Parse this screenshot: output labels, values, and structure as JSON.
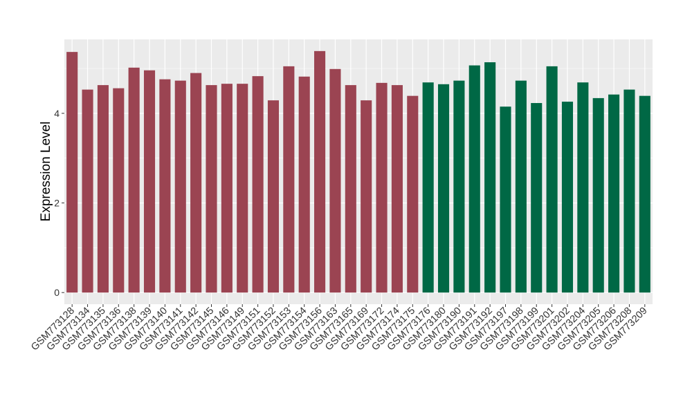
{
  "chart_data": {
    "type": "bar",
    "y_label": "Expression Level",
    "categories": [
      "GSM773128",
      "GSM773134",
      "GSM773135",
      "GSM773136",
      "GSM773138",
      "GSM773139",
      "GSM773140",
      "GSM773141",
      "GSM773142",
      "GSM773145",
      "GSM773146",
      "GSM773149",
      "GSM773151",
      "GSM773152",
      "GSM773153",
      "GSM773154",
      "GSM773156",
      "GSM773163",
      "GSM773165",
      "GSM773169",
      "GSM773172",
      "GSM773174",
      "GSM773175",
      "GSM773176",
      "GSM773180",
      "GSM773190",
      "GSM773191",
      "GSM773192",
      "GSM773197",
      "GSM773198",
      "GSM773199",
      "GSM773201",
      "GSM773202",
      "GSM773204",
      "GSM773205",
      "GSM773206",
      "GSM773208",
      "GSM773209"
    ],
    "values": [
      5.37,
      4.53,
      4.63,
      4.56,
      5.02,
      4.96,
      4.76,
      4.73,
      4.9,
      4.63,
      4.66,
      4.66,
      4.83,
      4.29,
      5.05,
      4.82,
      5.39,
      4.99,
      4.63,
      4.29,
      4.68,
      4.63,
      4.39,
      4.69,
      4.65,
      4.73,
      5.07,
      5.14,
      4.15,
      4.73,
      4.23,
      5.05,
      4.26,
      4.69,
      4.34,
      4.42,
      4.53,
      4.39
    ],
    "colors": [
      "#9b4452",
      "#9b4452",
      "#9b4452",
      "#9b4452",
      "#9b4452",
      "#9b4452",
      "#9b4452",
      "#9b4452",
      "#9b4452",
      "#9b4452",
      "#9b4452",
      "#9b4452",
      "#9b4452",
      "#9b4452",
      "#9b4452",
      "#9b4452",
      "#9b4452",
      "#9b4452",
      "#9b4452",
      "#9b4452",
      "#9b4452",
      "#9b4452",
      "#9b4452",
      "#006845",
      "#006845",
      "#006845",
      "#006845",
      "#006845",
      "#006845",
      "#006845",
      "#006845",
      "#006845",
      "#006845",
      "#006845",
      "#006845",
      "#006845",
      "#006845",
      "#006845"
    ],
    "ylim": [
      -0.26,
      5.65
    ],
    "yticks": [
      0,
      2,
      4
    ],
    "grid": true
  }
}
